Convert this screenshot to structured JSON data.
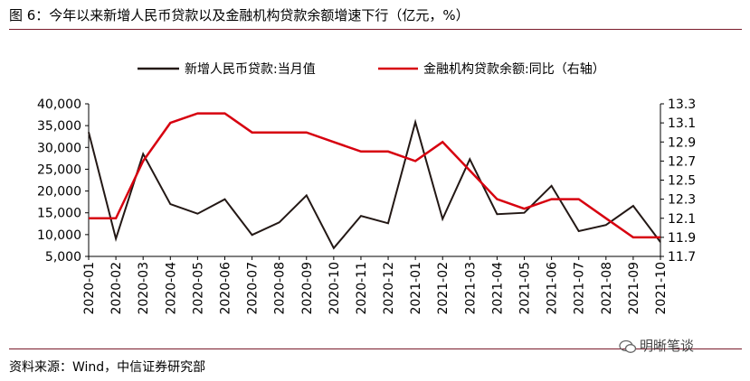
{
  "figure": {
    "title": "图 6：今年以来新增人民币贷款以及金融机构贷款余额增速下行（亿元，%）",
    "source": "资料来源：Wind，中信证券研究部",
    "watermark": "明晰笔谈"
  },
  "chart_data": {
    "type": "line",
    "categories": [
      "2020-01",
      "2020-02",
      "2020-03",
      "2020-04",
      "2020-05",
      "2020-06",
      "2020-07",
      "2020-08",
      "2020-09",
      "2020-10",
      "2020-11",
      "2020-12",
      "2021-01",
      "2021-02",
      "2021-03",
      "2021-04",
      "2021-05",
      "2021-06",
      "2021-07",
      "2021-08",
      "2021-09",
      "2021-10"
    ],
    "series": [
      {
        "name": "新增人民币贷款:当月值",
        "axis": "left",
        "color": "#231815",
        "values": [
          33500,
          9057,
          28500,
          17000,
          14800,
          18100,
          9927,
          12800,
          19000,
          6898,
          14300,
          12600,
          35800,
          13600,
          27300,
          14700,
          15000,
          21200,
          10800,
          12200,
          16600,
          8300
        ]
      },
      {
        "name": "金融机构贷款余额:同比（右轴）",
        "axis": "right",
        "color": "#d7000f",
        "values": [
          12.1,
          12.1,
          12.7,
          13.1,
          13.2,
          13.2,
          13.0,
          13.0,
          13.0,
          12.9,
          12.8,
          12.8,
          12.7,
          12.9,
          12.6,
          12.3,
          12.2,
          12.3,
          12.3,
          12.1,
          11.9,
          11.9
        ]
      }
    ],
    "y_left": {
      "range": [
        5000,
        40000
      ],
      "ticks": [
        "5,000",
        "10,000",
        "15,000",
        "20,000",
        "25,000",
        "30,000",
        "35,000",
        "40,000"
      ]
    },
    "y_right": {
      "range": [
        11.7,
        13.3
      ],
      "ticks": [
        "11.7",
        "11.9",
        "12.1",
        "12.3",
        "12.5",
        "12.7",
        "12.9",
        "13.1",
        "13.3"
      ]
    },
    "grid": false,
    "legend": "top"
  }
}
